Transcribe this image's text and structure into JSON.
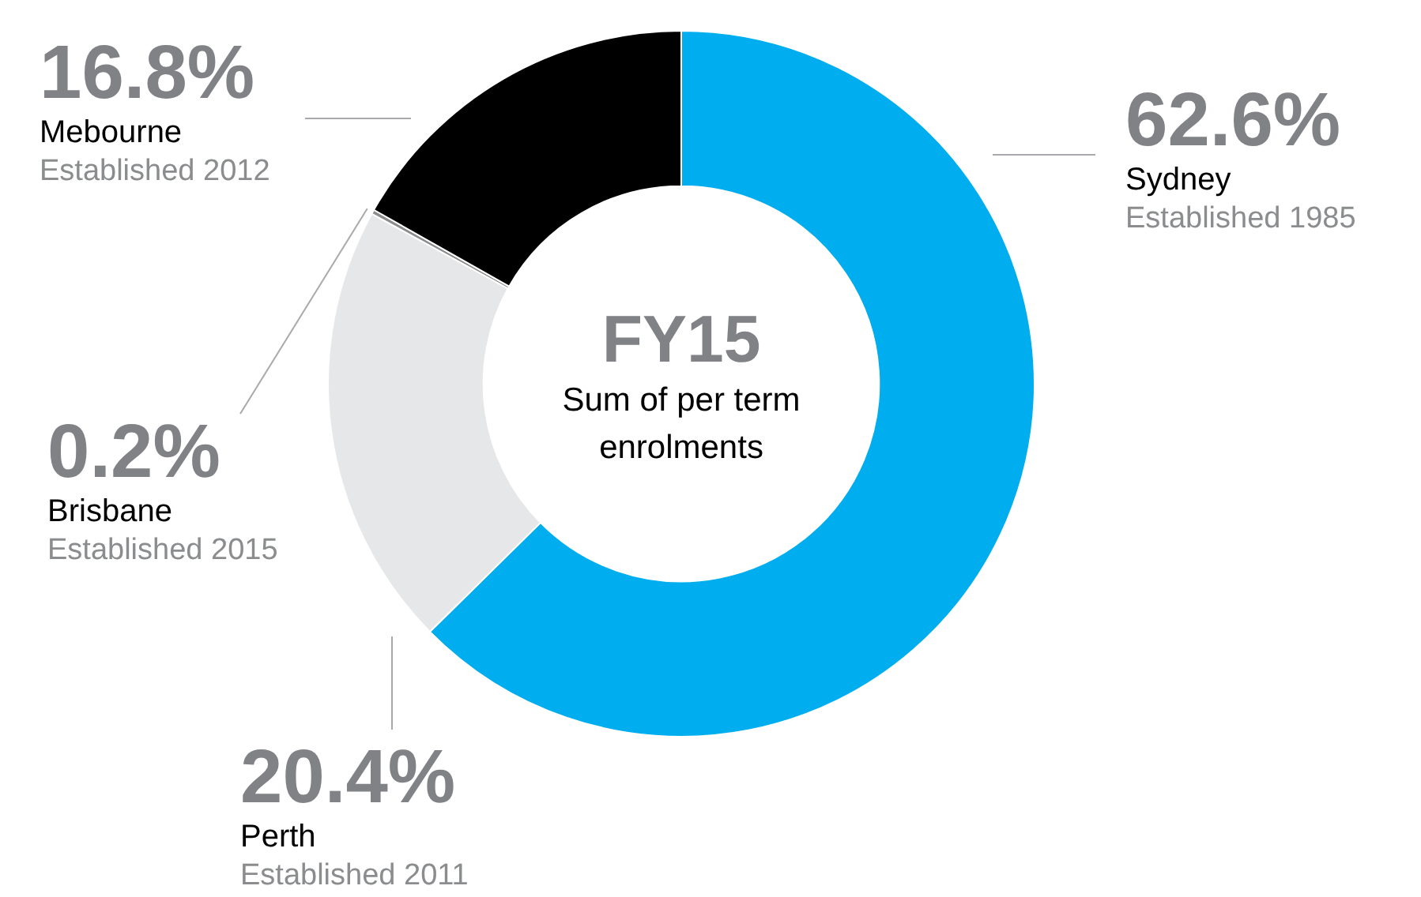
{
  "chart_data": {
    "type": "donut",
    "title": "FY15",
    "subtitle": "Sum of per term enrolments",
    "categories": [
      "Sydney",
      "Perth",
      "Brisbane",
      "Mebourne"
    ],
    "values": [
      62.6,
      20.4,
      0.2,
      16.8
    ],
    "colors": [
      "#00aeef",
      "#e6e7e8",
      "#8c8c8c",
      "#000000"
    ],
    "value_labels": [
      "62.6%",
      "20.4%",
      "0.2%",
      "16.8%"
    ],
    "annotations": [
      "Established 1985",
      "Established 2011",
      "Established 2015",
      "Established 2012"
    ]
  }
}
